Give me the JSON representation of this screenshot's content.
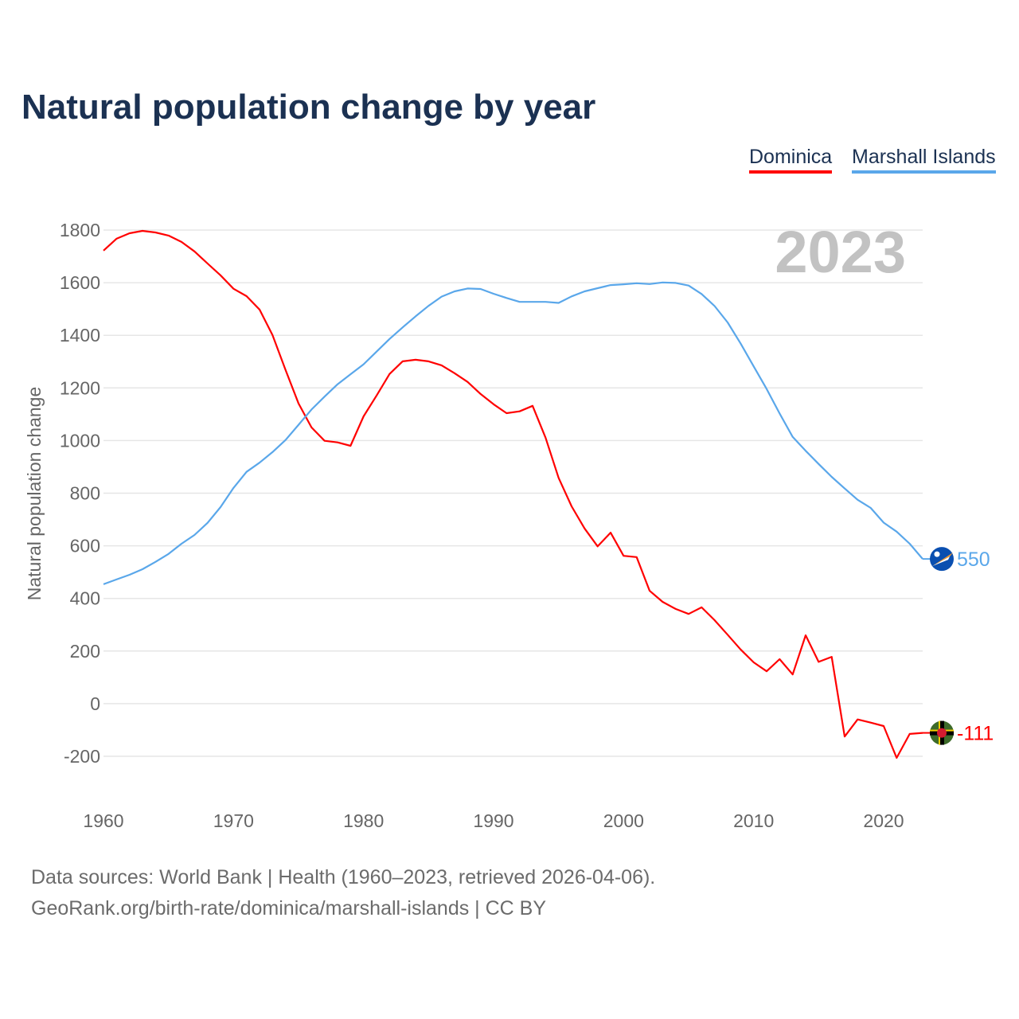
{
  "chart_data": {
    "type": "line",
    "title": "Natural population change by year",
    "xlabel": "",
    "ylabel": "Natural population change",
    "year_label": "2023",
    "xlim": [
      1960,
      2023
    ],
    "ylim": [
      -200,
      1800
    ],
    "x_ticks": [
      1960,
      1970,
      1980,
      1990,
      2000,
      2010,
      2020
    ],
    "y_ticks": [
      -200,
      0,
      200,
      400,
      600,
      800,
      1000,
      1200,
      1400,
      1600,
      1800
    ],
    "grid": true,
    "legend_placement": "top-right",
    "x": [
      1960,
      1961,
      1962,
      1963,
      1964,
      1965,
      1966,
      1967,
      1968,
      1969,
      1970,
      1971,
      1972,
      1973,
      1974,
      1975,
      1976,
      1977,
      1978,
      1979,
      1980,
      1981,
      1982,
      1983,
      1984,
      1985,
      1986,
      1987,
      1988,
      1989,
      1990,
      1991,
      1992,
      1993,
      1994,
      1995,
      1996,
      1997,
      1998,
      1999,
      2000,
      2001,
      2002,
      2003,
      2004,
      2005,
      2006,
      2007,
      2008,
      2009,
      2010,
      2011,
      2012,
      2013,
      2014,
      2015,
      2016,
      2017,
      2018,
      2019,
      2020,
      2021,
      2022,
      2023
    ],
    "series": [
      {
        "name": "Dominica",
        "color": "#ff0000",
        "end_label": "-111",
        "flag": "dominica-flag",
        "values": [
          1722,
          1767,
          1788,
          1797,
          1791,
          1779,
          1755,
          1719,
          1673,
          1628,
          1577,
          1549,
          1498,
          1401,
          1268,
          1141,
          1050,
          999,
          993,
          980,
          1092,
          1171,
          1253,
          1301,
          1307,
          1301,
          1286,
          1256,
          1223,
          1177,
          1138,
          1104,
          1111,
          1132,
          1011,
          858,
          750,
          666,
          598,
          650,
          562,
          557,
          429,
          387,
          360,
          341,
          366,
          317,
          262,
          206,
          157,
          123,
          169,
          111,
          260,
          159,
          178,
          -125,
          -60,
          -72,
          -85,
          -206,
          -115,
          -111
        ]
      },
      {
        "name": "Marshall Islands",
        "color": "#5aa7ea",
        "end_label": "550",
        "flag": "marshall-islands-flag",
        "values": [
          454,
          472,
          490,
          511,
          539,
          569,
          608,
          641,
          687,
          747,
          820,
          881,
          916,
          956,
          1002,
          1060,
          1118,
          1167,
          1214,
          1252,
          1290,
          1338,
          1386,
          1430,
          1472,
          1512,
          1547,
          1567,
          1578,
          1576,
          1558,
          1542,
          1527,
          1527,
          1527,
          1523,
          1548,
          1567,
          1579,
          1591,
          1594,
          1598,
          1595,
          1601,
          1599,
          1589,
          1557,
          1511,
          1449,
          1369,
          1282,
          1196,
          1103,
          1014,
          961,
          911,
          862,
          818,
          775,
          744,
          688,
          654,
          608,
          550
        ]
      }
    ]
  },
  "footer": {
    "line1": "Data sources: World Bank | Health (1960–2023, retrieved 2026-04-06).",
    "line2": "GeoRank.org/birth-rate/dominica/marshall-islands | CC BY"
  }
}
